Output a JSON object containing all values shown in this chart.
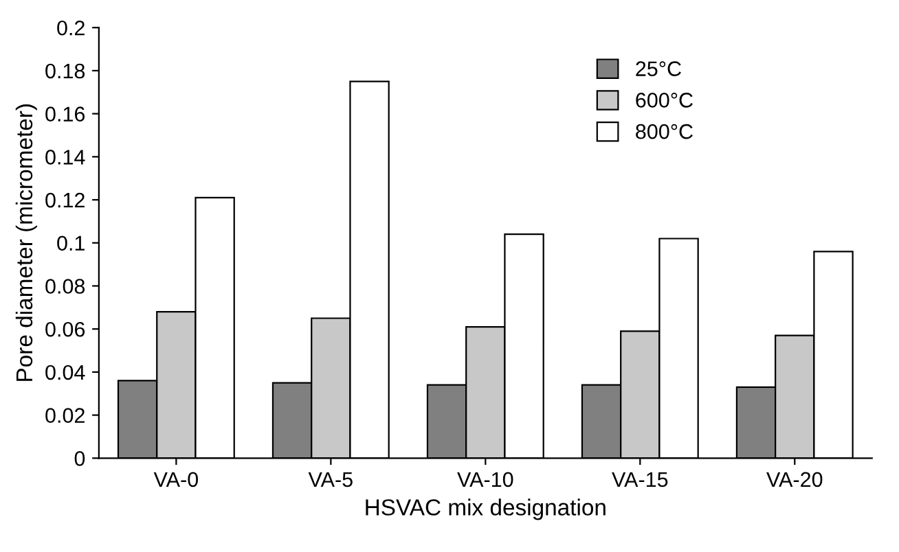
{
  "chart_data": {
    "type": "bar",
    "xlabel": "HSVAC mix designation",
    "ylabel": "Pore diameter (micrometer)",
    "categories": [
      "VA-0",
      "VA-5",
      "VA-10",
      "VA-15",
      "VA-20"
    ],
    "series": [
      {
        "name": "25°C",
        "color": "#808080",
        "values": [
          0.036,
          0.035,
          0.034,
          0.034,
          0.033
        ]
      },
      {
        "name": "600°C",
        "color": "#c8c8c8",
        "values": [
          0.068,
          0.065,
          0.061,
          0.059,
          0.057
        ]
      },
      {
        "name": "800°C",
        "color": "#ffffff",
        "values": [
          0.121,
          0.175,
          0.104,
          0.102,
          0.096
        ]
      }
    ],
    "ylim": [
      0,
      0.2
    ],
    "yticks": [
      0,
      0.02,
      0.04,
      0.06,
      0.08,
      0.1,
      0.12,
      0.14,
      0.16,
      0.18,
      0.2
    ],
    "grid": false,
    "legend": "top right"
  }
}
